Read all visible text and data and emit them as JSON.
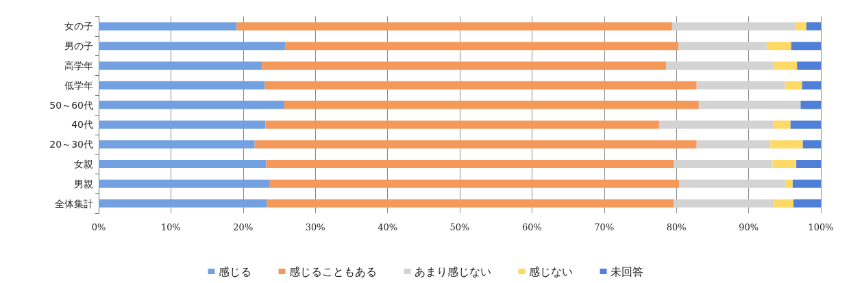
{
  "chart_data": {
    "type": "bar",
    "orientation": "horizontal",
    "stacked": true,
    "categories": [
      "女の子",
      "男の子",
      "高学年",
      "低学年",
      "50～60代",
      "40代",
      "20～30代",
      "女親",
      "男親",
      "全体集計"
    ],
    "series": [
      {
        "name": "感じる",
        "color": "#72a0e0",
        "values": [
          19.1,
          25.8,
          22.6,
          23.0,
          25.7,
          23.1,
          21.6,
          23.2,
          23.7,
          23.3
        ]
      },
      {
        "name": "感じることもある",
        "color": "#f5995a",
        "values": [
          60.3,
          54.5,
          56.0,
          59.8,
          57.4,
          54.5,
          61.2,
          56.4,
          56.7,
          56.3
        ]
      },
      {
        "name": "あまり感じない",
        "color": "#d3d3d3",
        "values": [
          17.1,
          12.2,
          14.9,
          12.3,
          14.1,
          15.9,
          10.2,
          13.7,
          14.7,
          13.9
        ]
      },
      {
        "name": "感じない",
        "color": "#ffd966",
        "values": [
          1.5,
          3.4,
          3.2,
          2.3,
          0,
          2.3,
          4.5,
          3.3,
          1.0,
          2.7
        ]
      },
      {
        "name": "未回答",
        "color": "#4f7fd6",
        "values": [
          2.0,
          4.1,
          3.3,
          2.6,
          2.8,
          4.2,
          2.5,
          3.4,
          3.9,
          3.8
        ]
      }
    ],
    "xlim": [
      0,
      100
    ],
    "xticks": [
      {
        "value": 0,
        "label": "0%"
      },
      {
        "value": 10,
        "label": "10%"
      },
      {
        "value": 20,
        "label": "20%"
      },
      {
        "value": 30,
        "label": "30%"
      },
      {
        "value": 40,
        "label": "40%"
      },
      {
        "value": 50,
        "label": "50%"
      },
      {
        "value": 60,
        "label": "60%"
      },
      {
        "value": 70,
        "label": "70%"
      },
      {
        "value": 80,
        "label": "80%"
      },
      {
        "value": 90,
        "label": "90%"
      },
      {
        "value": 100,
        "label": "100%"
      }
    ],
    "grid": "x",
    "legend": "bottom"
  }
}
